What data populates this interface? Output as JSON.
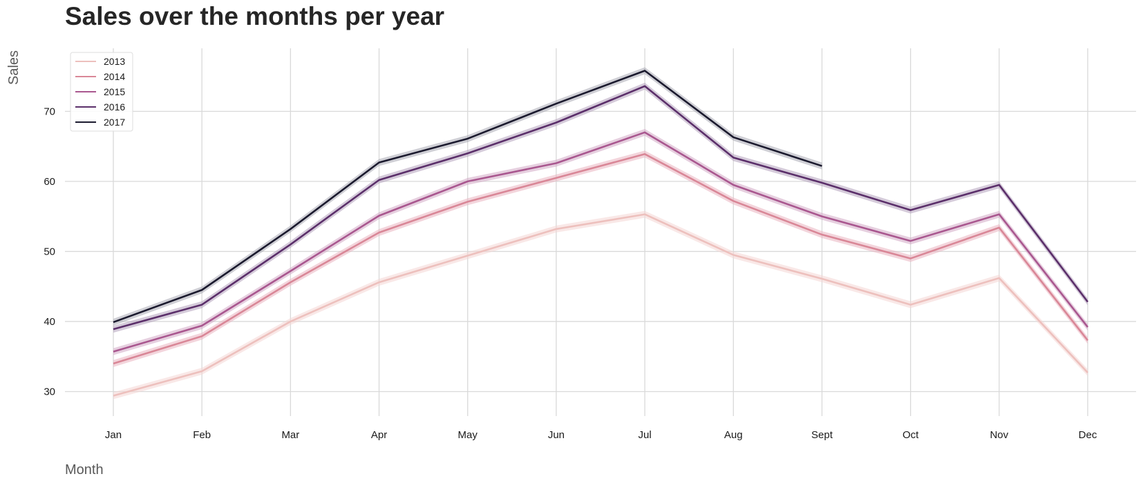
{
  "chart_data": {
    "type": "line",
    "title": "Sales over the months per year",
    "xlabel": "Month",
    "ylabel": "Sales",
    "ylim": [
      26.5,
      79
    ],
    "yticks": [
      30,
      40,
      50,
      60,
      70
    ],
    "grid": true,
    "legend_position": "top-left",
    "categories": [
      "Jan",
      "Feb",
      "Mar",
      "Apr",
      "May",
      "Jun",
      "Jul",
      "Aug",
      "Sept",
      "Oct",
      "Nov",
      "Dec"
    ],
    "series": [
      {
        "name": "2013",
        "color": "#edc0bd",
        "band_color": "#f4d6d4",
        "values": [
          29.4,
          32.9,
          40.0,
          45.6,
          49.4,
          53.2,
          55.3,
          49.5,
          46.1,
          42.4,
          46.2,
          32.7
        ]
      },
      {
        "name": "2014",
        "color": "#d98797",
        "band_color": "#eab3bf",
        "values": [
          34.0,
          37.9,
          45.6,
          52.7,
          57.1,
          60.5,
          63.9,
          57.2,
          52.4,
          49.0,
          53.4,
          37.3
        ]
      },
      {
        "name": "2015",
        "color": "#a9578f",
        "band_color": "#d1a7c4",
        "values": [
          35.7,
          39.4,
          47.2,
          55.1,
          60.0,
          62.6,
          67.0,
          59.5,
          55.0,
          51.5,
          55.3,
          39.2
        ]
      },
      {
        "name": "2016",
        "color": "#5b2f6a",
        "band_color": "#b3a0bc",
        "values": [
          38.9,
          42.4,
          51.0,
          60.2,
          64.0,
          68.4,
          73.6,
          63.4,
          59.8,
          55.9,
          59.5,
          42.8
        ]
      },
      {
        "name": "2017",
        "color": "#1b1a2e",
        "band_color": "#a8a7b2",
        "values": [
          39.9,
          44.5,
          53.2,
          62.7,
          66.1,
          71.1,
          75.8,
          66.3,
          62.2,
          null,
          null,
          null
        ]
      }
    ]
  }
}
